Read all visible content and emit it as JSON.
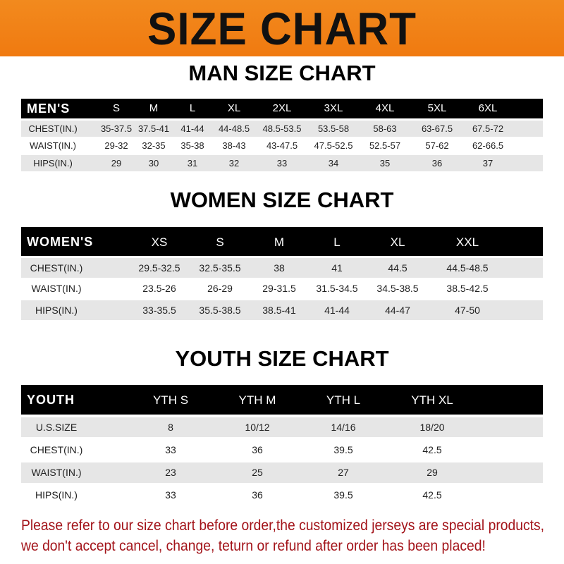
{
  "title": "SIZE CHART",
  "colors": {
    "banner": "#f07a10",
    "header": "#000000",
    "row_alt": "#e6e6e6",
    "notice": "#a3141a"
  },
  "tables": [
    {
      "title": "MAN SIZE CHART",
      "label": "MEN'S",
      "sizes": [
        "S",
        "M",
        "L",
        "XL",
        "2XL",
        "3XL",
        "4XL",
        "5XL",
        "6XL"
      ],
      "rows": [
        {
          "label": "CHEST(IN.)",
          "values": [
            "35-37.5",
            "37.5-41",
            "41-44",
            "44-48.5",
            "48.5-53.5",
            "53.5-58",
            "58-63",
            "63-67.5",
            "67.5-72"
          ]
        },
        {
          "label": "WAIST(IN.)",
          "values": [
            "29-32",
            "32-35",
            "35-38",
            "38-43",
            "43-47.5",
            "47.5-52.5",
            "52.5-57",
            "57-62",
            "62-66.5"
          ]
        },
        {
          "label": "HIPS(IN.)",
          "values": [
            "29",
            "30",
            "31",
            "32",
            "33",
            "34",
            "35",
            "36",
            "37"
          ]
        }
      ]
    },
    {
      "title": "WOMEN SIZE CHART",
      "label": "WOMEN'S",
      "sizes": [
        "XS",
        "S",
        "M",
        "L",
        "XL",
        "XXL"
      ],
      "rows": [
        {
          "label": "CHEST(IN.)",
          "values": [
            "29.5-32.5",
            "32.5-35.5",
            "38",
            "41",
            "44.5",
            "44.5-48.5"
          ]
        },
        {
          "label": "WAIST(IN.)",
          "values": [
            "23.5-26",
            "26-29",
            "29-31.5",
            "31.5-34.5",
            "34.5-38.5",
            "38.5-42.5"
          ]
        },
        {
          "label": "HIPS(IN.)",
          "values": [
            "33-35.5",
            "35.5-38.5",
            "38.5-41",
            "41-44",
            "44-47",
            "47-50"
          ]
        }
      ]
    },
    {
      "title": "YOUTH SIZE CHART",
      "label": "YOUTH",
      "sizes": [
        "YTH S",
        "YTH M",
        "YTH L",
        "YTH XL"
      ],
      "rows": [
        {
          "label": "U.S.SIZE",
          "values": [
            "8",
            "10/12",
            "14/16",
            "18/20"
          ]
        },
        {
          "label": "CHEST(IN.)",
          "values": [
            "33",
            "36",
            "39.5",
            "42.5"
          ]
        },
        {
          "label": "WAIST(IN.)",
          "values": [
            "23",
            "25",
            "27",
            "29"
          ]
        },
        {
          "label": "HIPS(IN.)",
          "values": [
            "33",
            "36",
            "39.5",
            "42.5"
          ]
        }
      ]
    }
  ],
  "notice": [
    "Please refer to our size chart before order,the customized jerseys are special products,",
    "we don't accept cancel, change, teturn or refund after order has been placed!"
  ]
}
